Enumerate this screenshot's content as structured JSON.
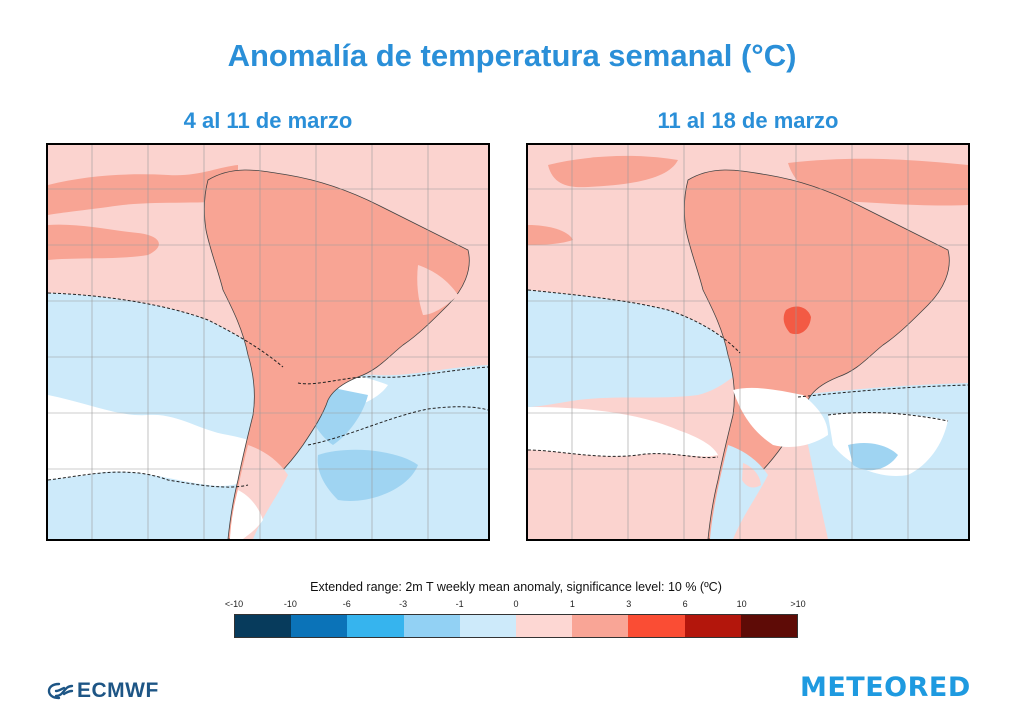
{
  "title": "Anomalía de temperatura semanal (°C)",
  "maps": [
    {
      "id": "week1",
      "title": "4 al 11 de marzo"
    },
    {
      "id": "week2",
      "title": "11 al 18 de marzo"
    }
  ],
  "legend": {
    "caption": "Extended range: 2m T weekly mean anomaly, significance level: 10 % (ºC)",
    "ticks": [
      "<-10",
      "-10",
      "-6",
      "-3",
      "-1",
      "0",
      "1",
      "3",
      "6",
      "10",
      ">10"
    ],
    "colors": [
      "#073b5c",
      "#0b73b8",
      "#36b4ee",
      "#92d1f4",
      "#cdeafa",
      "#fdd7d3",
      "#f9a596",
      "#fa4d34",
      "#b3160c",
      "#5e0b06"
    ]
  },
  "logos": {
    "ecmwf": "ECMWF",
    "meteored": "METEORED"
  },
  "colors": {
    "title": "#2a8fd8",
    "warm_light": "#fbd3cf",
    "warm": "#f8a494",
    "warm_strong": "#f35a44",
    "cool_light": "#cdeafa",
    "cool": "#9fd4f2"
  }
}
